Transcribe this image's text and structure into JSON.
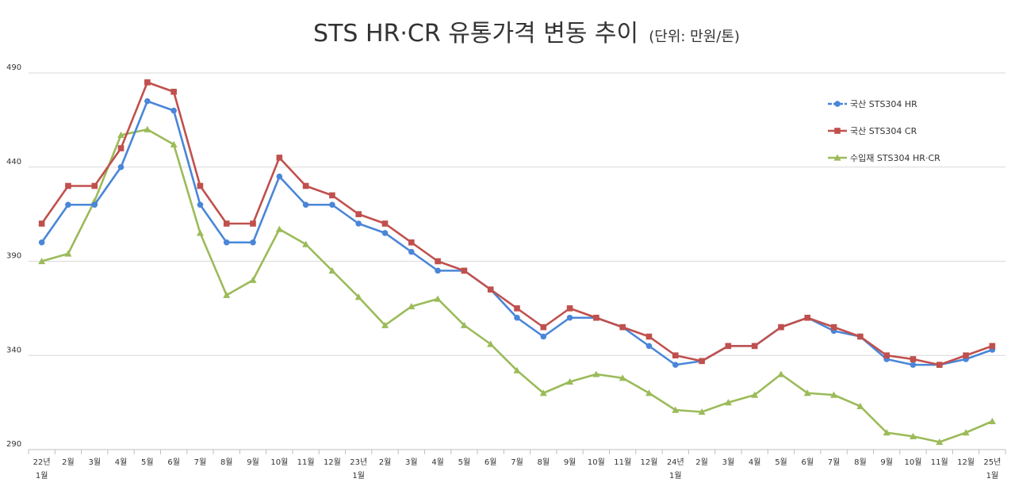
{
  "chart_data": {
    "type": "line",
    "title": "STS HR·CR 유통가격 변동 추이",
    "subtitle": "(단위: 만원/톤)",
    "categories": [
      [
        "22년",
        "1월"
      ],
      [
        "2월"
      ],
      [
        "3월"
      ],
      [
        "4월"
      ],
      [
        "5월"
      ],
      [
        "6월"
      ],
      [
        "7월"
      ],
      [
        "8월"
      ],
      [
        "9월"
      ],
      [
        "10월"
      ],
      [
        "11월"
      ],
      [
        "12월"
      ],
      [
        "23년",
        "1월"
      ],
      [
        "2월"
      ],
      [
        "3월"
      ],
      [
        "4월"
      ],
      [
        "5월"
      ],
      [
        "6월"
      ],
      [
        "7월"
      ],
      [
        "8월"
      ],
      [
        "9월"
      ],
      [
        "10월"
      ],
      [
        "11월"
      ],
      [
        "12월"
      ],
      [
        "24년",
        "1월"
      ],
      [
        "2월"
      ],
      [
        "3월"
      ],
      [
        "4월"
      ],
      [
        "5월"
      ],
      [
        "6월"
      ],
      [
        "7월"
      ],
      [
        "8월"
      ],
      [
        "9월"
      ],
      [
        "10월"
      ],
      [
        "11월"
      ],
      [
        "12월"
      ],
      [
        "25년",
        "1월"
      ]
    ],
    "ylim": [
      290,
      490
    ],
    "yticks": [
      290,
      340,
      390,
      440,
      490
    ],
    "grid": true,
    "legend": "right",
    "series": [
      {
        "name": "국산 STS304 HR",
        "color": "#4a86d8",
        "marker": "circle",
        "values": [
          400,
          420,
          420,
          440,
          475,
          470,
          420,
          400,
          400,
          435,
          420,
          420,
          410,
          405,
          395,
          385,
          385,
          375,
          360,
          350,
          360,
          360,
          355,
          345,
          335,
          337,
          345,
          345,
          355,
          360,
          353,
          350,
          338,
          335,
          335,
          338,
          343
        ]
      },
      {
        "name": "국산 STS304 CR",
        "color": "#c0504d",
        "marker": "square",
        "values": [
          410,
          430,
          430,
          450,
          485,
          480,
          430,
          410,
          410,
          445,
          430,
          425,
          415,
          410,
          400,
          390,
          385,
          375,
          365,
          355,
          365,
          360,
          355,
          350,
          340,
          337,
          345,
          345,
          355,
          360,
          355,
          350,
          340,
          338,
          335,
          340,
          345
        ]
      },
      {
        "name": "수입재 STS304 HR·CR",
        "color": "#9bbb59",
        "marker": "triangle",
        "values": [
          390,
          394,
          422,
          457,
          460,
          452,
          405,
          372,
          380,
          407,
          399,
          385,
          371,
          356,
          366,
          370,
          356,
          346,
          332,
          320,
          326,
          330,
          328,
          320,
          311,
          310,
          315,
          319,
          330,
          320,
          319,
          313,
          299,
          297,
          294,
          299,
          305
        ]
      }
    ]
  }
}
